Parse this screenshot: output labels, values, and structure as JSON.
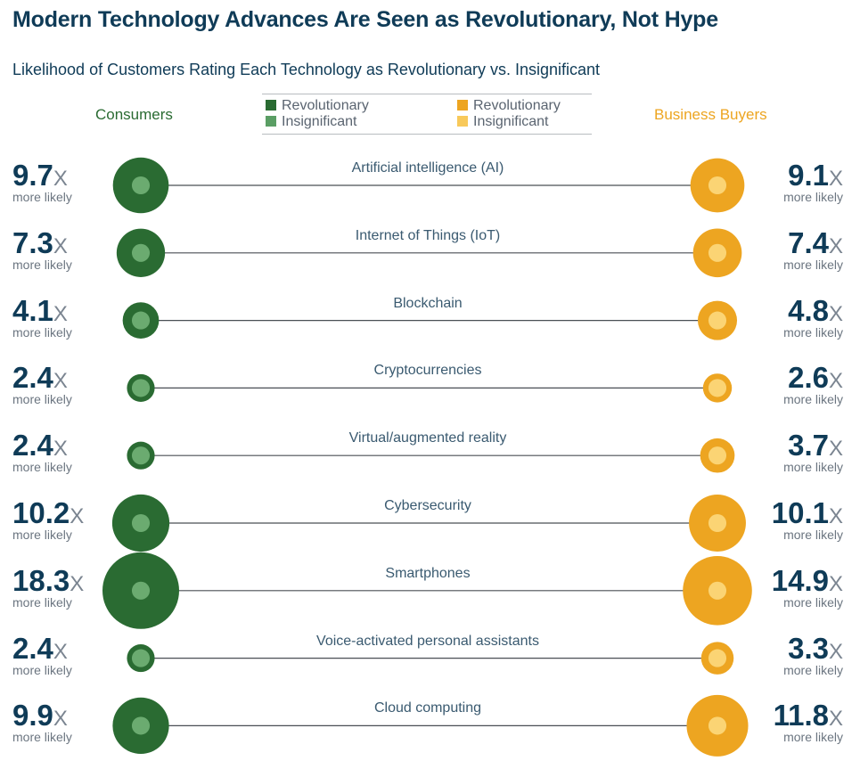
{
  "title": "Modern Technology Advances Are Seen as Revolutionary, Not Hype",
  "subtitle": "Likelihood of Customers Rating Each Technology as Revolutionary vs. Insignificant",
  "groups": {
    "consumers": "Consumers",
    "business": "Business Buyers"
  },
  "colors": {
    "consumer_revolutionary": "#2a6b32",
    "consumer_insignificant": "#5a9e64",
    "business_revolutionary": "#eda521",
    "business_insignificant": "#f8c95a",
    "line": "#4a4f55",
    "dot_consumer": "#6bab70",
    "dot_business": "#fbd474"
  },
  "legend": {
    "consumer_revolutionary": "Revolutionary",
    "consumer_insignificant": "Insignificant",
    "business_revolutionary": "Revolutionary",
    "business_insignificant": "Insignificant"
  },
  "unit_suffix": "X",
  "more_likely": "more likely",
  "chart_data": {
    "type": "bubble-comparison",
    "title": "Modern Technology Advances Are Seen as Revolutionary, Not Hype",
    "subtitle": "Likelihood of Customers Rating Each Technology as Revolutionary vs. Insignificant",
    "categories": [
      "Artificial intelligence (AI)",
      "Internet of Things (IoT)",
      "Blockchain",
      "Cryptocurrencies",
      "Virtual/augmented reality",
      "Cybersecurity",
      "Smartphones",
      "Voice-activated personal assistants",
      "Cloud computing"
    ],
    "series": [
      {
        "name": "Consumers",
        "values": [
          9.7,
          7.3,
          4.1,
          2.4,
          2.4,
          10.2,
          18.3,
          2.4,
          9.9
        ],
        "labels": [
          "9.7",
          "7.3",
          "4.1",
          "2.4",
          "2.4",
          "10.2",
          "18.3",
          "2.4",
          "9.9"
        ]
      },
      {
        "name": "Business Buyers",
        "values": [
          9.1,
          7.4,
          4.8,
          2.6,
          3.7,
          10.1,
          14.9,
          3.3,
          11.8
        ],
        "labels": [
          "9.1",
          "7.4",
          "4.8",
          "2.6",
          "3.7",
          "10.1",
          "14.9",
          "3.3",
          "11.8"
        ]
      }
    ],
    "legend": [
      "Revolutionary",
      "Insignificant",
      "Revolutionary",
      "Insignificant"
    ]
  }
}
